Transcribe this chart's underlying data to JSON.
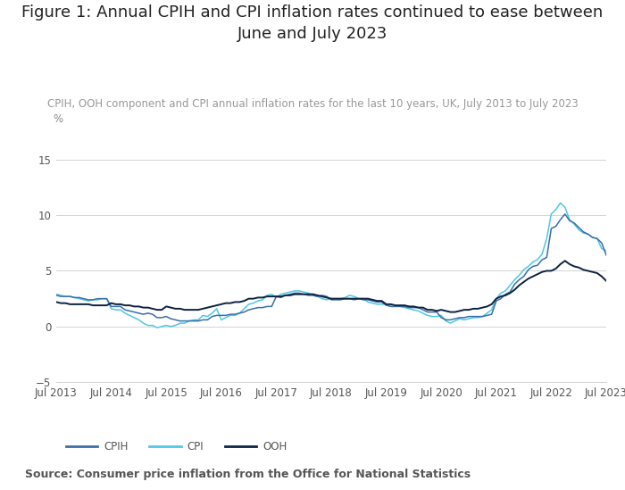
{
  "title": "Figure 1: Annual CPIH and CPI inflation rates continued to ease between\nJune and July 2023",
  "subtitle": "CPIH, OOH component and CPI annual inflation rates for the last 10 years, UK, July 2013 to July 2023",
  "source": "Source: Consumer price inflation from the Office for National Statistics",
  "ylabel": "%",
  "ylim": [
    -5,
    17
  ],
  "yticks": [
    -5,
    0,
    5,
    10,
    15
  ],
  "colors": {
    "CPIH": "#3a6fa8",
    "CPI": "#4ec8e4",
    "OOH": "#0d2240"
  },
  "x_labels": [
    "Jul 2013",
    "Jul 2014",
    "Jul 2015",
    "Jul 2016",
    "Jul 2017",
    "Jul 2018",
    "Jul 2019",
    "Jul 2020",
    "Jul 2021",
    "Jul 2022",
    "Jul 2023"
  ],
  "background_color": "#ffffff",
  "grid_color": "#cccccc",
  "title_fontsize": 13,
  "subtitle_fontsize": 8.5,
  "source_fontsize": 9,
  "axis_fontsize": 8.5,
  "CPIH": [
    2.8,
    2.7,
    2.7,
    2.7,
    2.6,
    2.6,
    2.5,
    2.4,
    2.4,
    2.5,
    2.5,
    2.5,
    1.8,
    1.8,
    1.8,
    1.5,
    1.4,
    1.3,
    1.2,
    1.1,
    1.2,
    1.1,
    0.8,
    0.8,
    0.9,
    0.7,
    0.6,
    0.5,
    0.5,
    0.5,
    0.5,
    0.5,
    0.6,
    0.6,
    0.9,
    1.0,
    1.0,
    1.0,
    1.1,
    1.1,
    1.2,
    1.3,
    1.5,
    1.6,
    1.7,
    1.7,
    1.8,
    1.8,
    2.7,
    2.6,
    2.8,
    2.9,
    3.0,
    3.0,
    2.9,
    2.8,
    2.8,
    2.7,
    2.8,
    2.7,
    2.4,
    2.4,
    2.4,
    2.5,
    2.5,
    2.4,
    2.5,
    2.4,
    2.4,
    2.3,
    2.2,
    2.2,
    1.9,
    1.8,
    1.8,
    1.8,
    1.8,
    1.7,
    1.7,
    1.7,
    1.5,
    1.3,
    1.3,
    1.3,
    0.8,
    0.6,
    0.6,
    0.7,
    0.8,
    0.8,
    0.9,
    0.9,
    0.9,
    0.9,
    1.0,
    1.1,
    2.3,
    2.5,
    2.9,
    3.1,
    3.8,
    4.2,
    4.5,
    5.1,
    5.4,
    5.5,
    6.0,
    6.2,
    8.8,
    9.0,
    9.6,
    10.1,
    9.5,
    9.3,
    8.9,
    8.5,
    8.3,
    8.0,
    7.9,
    7.5,
    6.4
  ],
  "CPI": [
    2.9,
    2.8,
    2.7,
    2.7,
    2.6,
    2.5,
    2.4,
    2.3,
    2.4,
    2.4,
    2.5,
    2.5,
    1.6,
    1.5,
    1.5,
    1.2,
    1.0,
    0.8,
    0.6,
    0.3,
    0.1,
    0.1,
    -0.1,
    0.0,
    0.1,
    0.0,
    0.1,
    0.3,
    0.3,
    0.5,
    0.6,
    0.6,
    1.0,
    0.9,
    1.2,
    1.6,
    0.6,
    0.8,
    1.0,
    1.0,
    1.2,
    1.6,
    2.0,
    2.1,
    2.3,
    2.4,
    2.8,
    2.9,
    2.6,
    2.9,
    3.0,
    3.1,
    3.2,
    3.2,
    3.1,
    3.0,
    2.8,
    2.7,
    2.5,
    2.4,
    2.5,
    2.5,
    2.5,
    2.6,
    2.8,
    2.7,
    2.5,
    2.5,
    2.2,
    2.1,
    2.0,
    2.0,
    2.0,
    1.8,
    1.8,
    1.8,
    1.7,
    1.6,
    1.5,
    1.4,
    1.2,
    1.0,
    0.9,
    0.9,
    1.0,
    0.5,
    0.3,
    0.5,
    0.7,
    0.6,
    0.7,
    0.8,
    0.8,
    0.9,
    1.2,
    1.5,
    2.5,
    3.0,
    3.2,
    3.7,
    4.2,
    4.6,
    5.1,
    5.4,
    5.8,
    6.0,
    6.5,
    7.9,
    10.1,
    10.5,
    11.1,
    10.7,
    9.6,
    9.2,
    8.7,
    8.4,
    8.3,
    8.0,
    7.9,
    7.0,
    6.8
  ],
  "OOH": [
    2.2,
    2.1,
    2.1,
    2.0,
    2.0,
    2.0,
    2.0,
    2.0,
    1.9,
    1.9,
    1.9,
    1.9,
    2.1,
    2.0,
    2.0,
    1.9,
    1.9,
    1.8,
    1.8,
    1.7,
    1.7,
    1.6,
    1.5,
    1.5,
    1.8,
    1.7,
    1.6,
    1.6,
    1.5,
    1.5,
    1.5,
    1.5,
    1.6,
    1.7,
    1.8,
    1.9,
    2.0,
    2.1,
    2.1,
    2.2,
    2.2,
    2.3,
    2.5,
    2.5,
    2.6,
    2.6,
    2.7,
    2.7,
    2.7,
    2.7,
    2.8,
    2.8,
    2.9,
    2.9,
    2.9,
    2.9,
    2.9,
    2.8,
    2.7,
    2.6,
    2.5,
    2.5,
    2.5,
    2.5,
    2.5,
    2.5,
    2.5,
    2.5,
    2.5,
    2.4,
    2.3,
    2.3,
    2.0,
    2.0,
    1.9,
    1.9,
    1.9,
    1.8,
    1.8,
    1.7,
    1.7,
    1.5,
    1.5,
    1.4,
    1.5,
    1.4,
    1.3,
    1.3,
    1.4,
    1.5,
    1.5,
    1.6,
    1.6,
    1.7,
    1.8,
    2.0,
    2.5,
    2.7,
    2.8,
    3.0,
    3.3,
    3.7,
    4.0,
    4.3,
    4.5,
    4.7,
    4.9,
    5.0,
    5.0,
    5.2,
    5.6,
    5.9,
    5.6,
    5.4,
    5.3,
    5.1,
    5.0,
    4.9,
    4.8,
    4.5,
    4.1
  ]
}
